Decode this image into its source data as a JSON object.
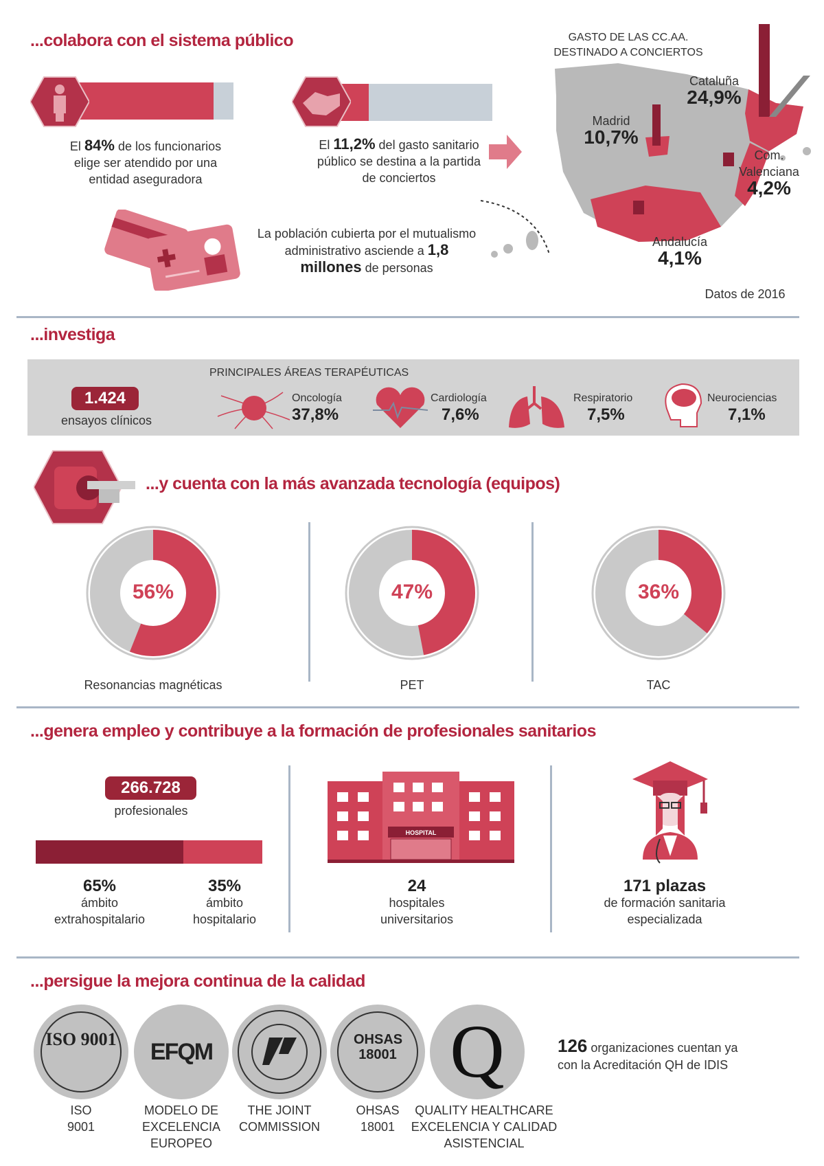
{
  "colors": {
    "accent": "#cf4257",
    "dark": "#8b1f35",
    "heading": "#b3253f",
    "grey": "#c8d0d8"
  },
  "s1": {
    "title": "...colabora con el sistema público",
    "stat1": {
      "pre": "El ",
      "value": "84%",
      "post": " de los funcionarios elige ser atendido por una entidad aseguradora",
      "fraction": 0.84,
      "icon": "civil-servant-icon"
    },
    "stat2": {
      "pre": "El ",
      "value": "11,2%",
      "post": " del gasto sanitario público se destina a la partida de conciertos",
      "fraction": 0.112,
      "icon": "handshake-icon"
    },
    "pop": {
      "pre": "La población cubierta por el mutualismo administrativo asciende a ",
      "value": "1,8 millones",
      "post": " de personas",
      "icon": "health-card-icon"
    },
    "map": {
      "title1": "GASTO DE LAS CC.AA.",
      "title2": "DESTINADO A CONCIERTOS",
      "regions": [
        {
          "name": "Cataluña",
          "value": "24,9%"
        },
        {
          "name": "Madrid",
          "value": "10,7%"
        },
        {
          "name": "Com.",
          "name2": "Valenciana",
          "value": "4,2%"
        },
        {
          "name": "Andalucía",
          "value": "4,1%"
        }
      ],
      "note": "Datos de 2016"
    }
  },
  "s2": {
    "title": "...investiga",
    "trials": "1.424",
    "trials_label": "ensayos clínicos",
    "areas_title": "PRINCIPALES ÁREAS TERAPÉUTICAS",
    "areas": [
      {
        "name": "Oncología",
        "value": "37,8%",
        "icon": "tumor-cell-icon"
      },
      {
        "name": "Cardiología",
        "value": "7,6%",
        "icon": "heart-icon"
      },
      {
        "name": "Respiratorio",
        "value": "7,5%",
        "icon": "lungs-icon"
      },
      {
        "name": "Neurociencias",
        "value": "7,1%",
        "icon": "brain-icon"
      }
    ]
  },
  "s3": {
    "title": "...y cuenta con la más avanzada tecnología (equipos)",
    "icon": "mri-scanner-icon",
    "donuts": [
      {
        "label": "Resonancias magnéticas",
        "value": "56%",
        "pct": 56
      },
      {
        "label": "PET",
        "value": "47%",
        "pct": 47
      },
      {
        "label": "TAC",
        "value": "36%",
        "pct": 36
      }
    ]
  },
  "s4": {
    "title": "...genera empleo y contribuye a la formación de profesionales sanitarios",
    "prof": "266.728",
    "prof_label": "profesionales",
    "split": [
      {
        "value": "65%",
        "l1": "ámbito",
        "l2": "extrahospitalario",
        "pct": 65
      },
      {
        "value": "35%",
        "l1": "ámbito",
        "l2": "hospitalario",
        "pct": 35
      }
    ],
    "hospital_sign": "HOSPITAL",
    "hospitals": "24",
    "hosp_l1": "hospitales",
    "hosp_l2": "universitarios",
    "plazas": "171 plazas",
    "plazas_l1": "de formación sanitaria",
    "plazas_l2": "especializada"
  },
  "s5": {
    "title": "...persigue la mejora continua de la calidad",
    "certs": [
      {
        "logo": "ISO 9001",
        "l": [
          "ISO",
          "9001"
        ]
      },
      {
        "logo": "EFQM",
        "l": [
          "MODELO DE",
          "EXCELENCIA",
          "EUROPEO"
        ]
      },
      {
        "logo": "",
        "l": [
          "THE JOINT",
          "COMMISSION"
        ]
      },
      {
        "logo": "OHSAS 18001",
        "l": [
          "OHSAS",
          "18001"
        ]
      },
      {
        "logo": "QH",
        "l": [
          "QUALITY HEALTHCARE",
          "EXCELENCIA Y CALIDAD",
          "ASISTENCIAL"
        ]
      }
    ],
    "orgs": "126",
    "orgs_t1": " organizaciones cuentan ya",
    "orgs_t2": "con la Acreditación QH de IDIS"
  }
}
